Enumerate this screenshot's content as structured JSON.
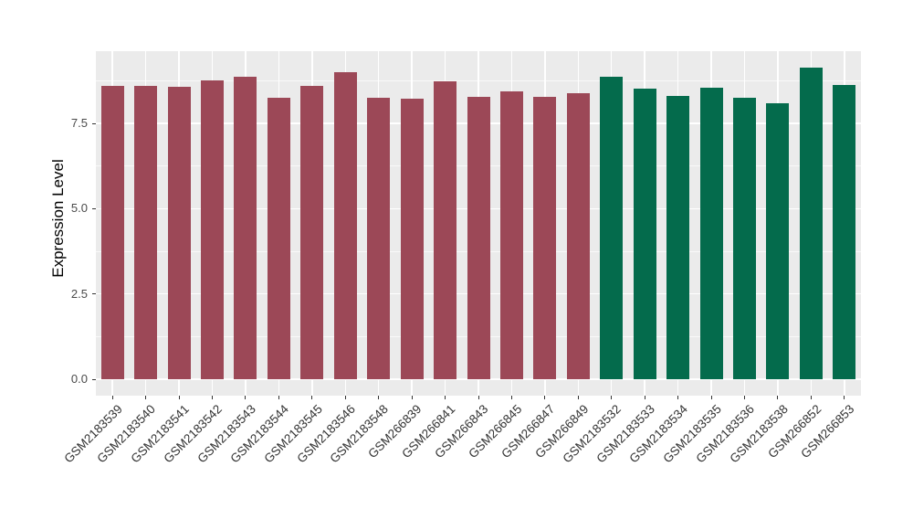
{
  "chart_data": {
    "type": "bar",
    "title": "",
    "xlabel": "",
    "ylabel": "Expression Level",
    "categories": [
      "GSM2183539",
      "GSM2183540",
      "GSM2183541",
      "GSM2183542",
      "GSM2183543",
      "GSM2183544",
      "GSM2183545",
      "GSM2183546",
      "GSM2183548",
      "GSM266839",
      "GSM266841",
      "GSM266843",
      "GSM266845",
      "GSM266847",
      "GSM266849",
      "GSM2183532",
      "GSM2183533",
      "GSM2183534",
      "GSM2183535",
      "GSM2183536",
      "GSM2183538",
      "GSM266852",
      "GSM266853"
    ],
    "values": [
      8.6,
      8.6,
      8.57,
      8.76,
      8.87,
      8.26,
      8.59,
      9.0,
      8.26,
      8.21,
      8.72,
      8.28,
      8.44,
      8.29,
      8.38,
      8.87,
      8.53,
      8.31,
      8.55,
      8.24,
      8.1,
      9.13,
      8.63
    ],
    "bar_groups": [
      0,
      0,
      0,
      0,
      0,
      0,
      0,
      0,
      0,
      0,
      0,
      0,
      0,
      0,
      0,
      1,
      1,
      1,
      1,
      1,
      1,
      1,
      1
    ],
    "group_colors": [
      "#9C4857",
      "#046B4C"
    ],
    "ylim": [
      0,
      9.62
    ],
    "yticks": {
      "values": [
        0,
        2.5,
        5,
        7.5
      ],
      "labels": [
        "0.0",
        "2.5",
        "5.0",
        "7.5"
      ]
    },
    "minor_yticks": [
      1.25,
      3.75,
      6.25,
      8.75
    ],
    "grid": "on",
    "legend": "none",
    "colors": {
      "panel_background": "#EBEBEB",
      "gridline": "#FFFFFF",
      "axis_text": "#4A4A4A",
      "x_axis_text": "#333333",
      "axis_title": "#000000",
      "tick_mark": "#333333",
      "figure_background": "#FFFFFF"
    }
  }
}
